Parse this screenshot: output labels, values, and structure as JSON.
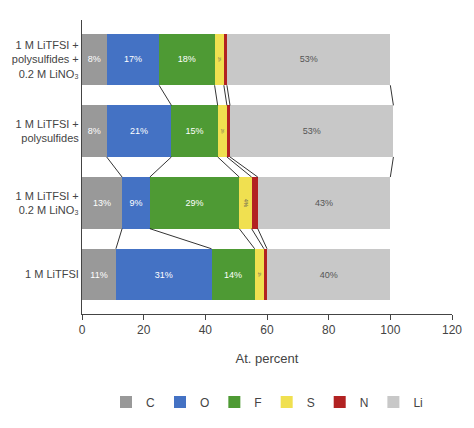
{
  "chart_data": {
    "type": "bar",
    "orientation": "horizontal",
    "stacked": true,
    "categories": [
      "1 M LiTFSI",
      "1 M LiTFSI +\n0.2 M LiNO₃",
      "1 M LiTFSI +\npolysulfides",
      "1 M LiTFSI +\npolysulfides +\n0.2 M LiNO₃"
    ],
    "series": [
      {
        "name": "C",
        "color": "#999999",
        "values": [
          11,
          13,
          8,
          8
        ],
        "value_labels": [
          "11%",
          "13%",
          "8%",
          "8%"
        ]
      },
      {
        "name": "O",
        "color": "#4472c4",
        "values": [
          31,
          9,
          21,
          17
        ],
        "value_labels": [
          "31%",
          "9%",
          "21%",
          "17%"
        ]
      },
      {
        "name": "F",
        "color": "#4e9a34",
        "values": [
          14,
          29,
          15,
          18
        ],
        "value_labels": [
          "14%",
          "29%",
          "15%",
          "18%"
        ]
      },
      {
        "name": "S",
        "color": "#f0e050",
        "values": [
          3,
          4,
          3,
          3
        ],
        "value_labels": [
          "3%",
          "4%",
          "3%",
          "3%"
        ]
      },
      {
        "name": "N",
        "color": "#b22222",
        "values": [
          1,
          2,
          1,
          1
        ],
        "value_labels": [
          null,
          "2%",
          null,
          null
        ]
      },
      {
        "name": "Li",
        "color": "#c8c8c8",
        "values": [
          40,
          43,
          53,
          53
        ],
        "value_labels": [
          "40%",
          "43%",
          "53%",
          "53%"
        ]
      }
    ],
    "xlabel": "At. percent",
    "xlim": [
      0,
      120
    ],
    "xticks": [
      0,
      20,
      40,
      60,
      80,
      100,
      120
    ],
    "grid": false,
    "legend": "bottom",
    "data_labels": true
  }
}
